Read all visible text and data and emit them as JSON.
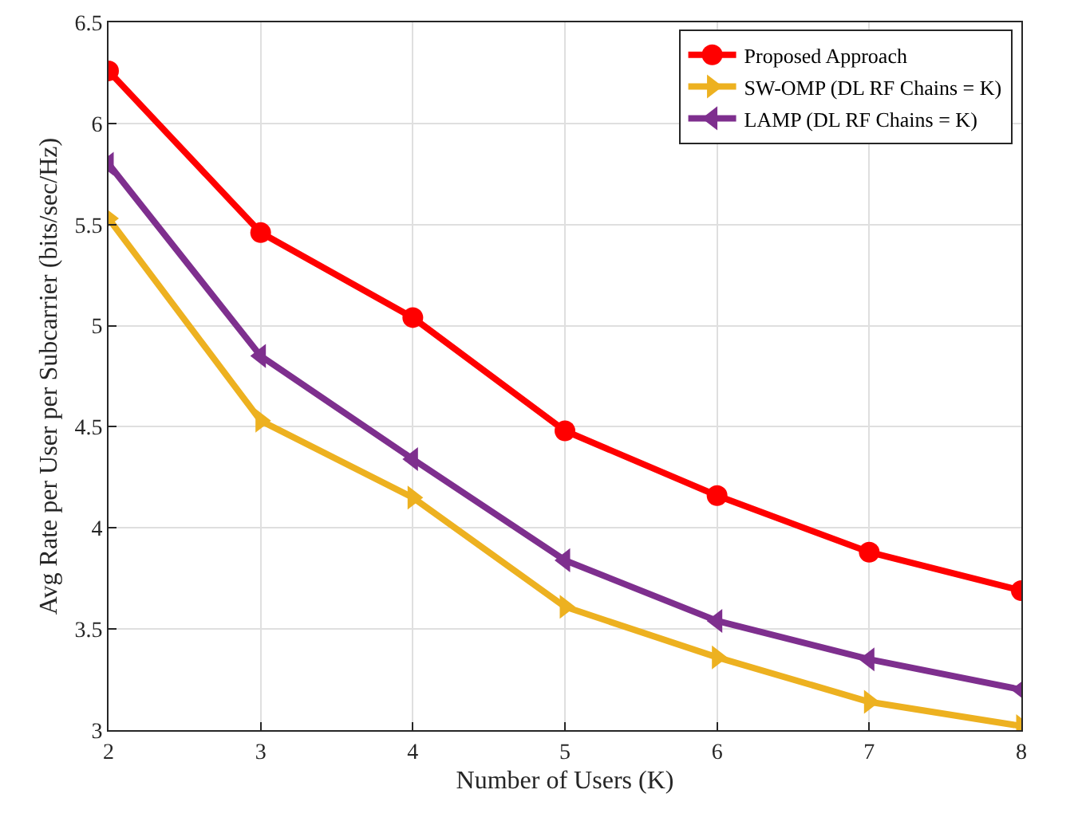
{
  "chart_data": {
    "type": "line",
    "xlabel": "Number of Users (K)",
    "ylabel": "Avg Rate per User per Subcarrier (bits/sec/Hz)",
    "x": [
      2,
      3,
      4,
      5,
      6,
      7,
      8
    ],
    "series": [
      {
        "name": "Proposed Approach",
        "color": "#ff0000",
        "marker": "circle",
        "values": [
          6.26,
          5.46,
          5.04,
          4.48,
          4.16,
          3.88,
          3.69
        ]
      },
      {
        "name": "SW-OMP (DL RF Chains = K)",
        "color": "#edb120",
        "marker": "triangle-right",
        "values": [
          5.53,
          4.53,
          4.15,
          3.61,
          3.36,
          3.14,
          3.02
        ]
      },
      {
        "name": "LAMP (DL RF Chains = K)",
        "color": "#7e2f8e",
        "marker": "triangle-left",
        "values": [
          5.8,
          4.85,
          4.34,
          3.84,
          3.54,
          3.35,
          3.2
        ]
      }
    ],
    "xlim": [
      2,
      8
    ],
    "xticks": [
      2,
      3,
      4,
      5,
      6,
      7,
      8
    ],
    "ylim": [
      3,
      6.5
    ],
    "yticks": [
      3,
      3.5,
      4,
      4.5,
      5,
      5.5,
      6,
      6.5
    ],
    "grid": true,
    "legend": "top right",
    "line_style": "solid"
  }
}
